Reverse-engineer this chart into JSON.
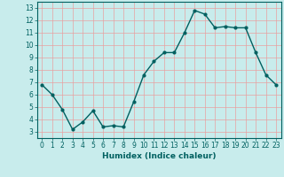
{
  "x": [
    0,
    1,
    2,
    3,
    4,
    5,
    6,
    7,
    8,
    9,
    10,
    11,
    12,
    13,
    14,
    15,
    16,
    17,
    18,
    19,
    20,
    21,
    22,
    23
  ],
  "y": [
    6.8,
    6.0,
    4.8,
    3.2,
    3.8,
    4.7,
    3.4,
    3.5,
    3.4,
    5.4,
    7.6,
    8.7,
    9.4,
    9.4,
    11.0,
    12.8,
    12.5,
    11.4,
    11.5,
    11.4,
    11.4,
    9.4,
    7.6,
    6.8
  ],
  "line_color": "#006060",
  "marker": "o",
  "marker_size": 2,
  "bg_color": "#c8ecec",
  "grid_color": "#e8a0a0",
  "axis_color": "#006060",
  "xlabel": "Humidex (Indice chaleur)",
  "xlim": [
    -0.5,
    23.5
  ],
  "ylim": [
    2.5,
    13.5
  ],
  "yticks": [
    3,
    4,
    5,
    6,
    7,
    8,
    9,
    10,
    11,
    12,
    13
  ],
  "xticks": [
    0,
    1,
    2,
    3,
    4,
    5,
    6,
    7,
    8,
    9,
    10,
    11,
    12,
    13,
    14,
    15,
    16,
    17,
    18,
    19,
    20,
    21,
    22,
    23
  ],
  "tick_label_fontsize": 5.5,
  "xlabel_fontsize": 6.5,
  "line_width": 1.0
}
